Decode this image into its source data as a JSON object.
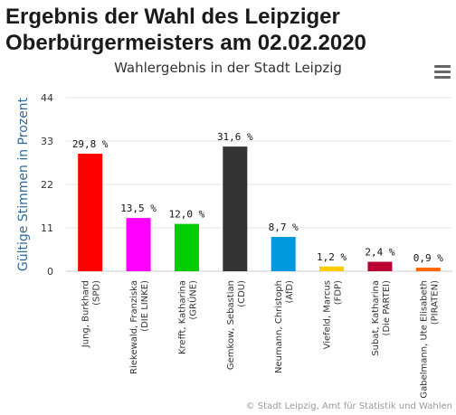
{
  "page": {
    "heading_line1": "Ergebnis der Wahl des Leipziger",
    "heading_line2": "Oberbürgermeisters am 02.02.2020",
    "credits": "© Stadt Leipzig, Amt für Statistik und Wahlen",
    "menu_icon": "hamburger-menu-icon"
  },
  "chart_data": {
    "type": "bar",
    "title": "Wahlergebnis in der Stadt Leipzig",
    "ylabel": "Gültige Stimmen in Prozent",
    "ylim": [
      0,
      44
    ],
    "yticks": [
      "0",
      "11",
      "22",
      "33",
      "44"
    ],
    "ytick_values": [
      0,
      11,
      22,
      33,
      44
    ],
    "categories": [
      [
        "Jung, Burkhard",
        "(SPD)"
      ],
      [
        "Riekewald, Franziska",
        "(DIE LINKE)"
      ],
      [
        "Krefft, Katharina",
        "(GRÜNE)"
      ],
      [
        "Gemkow, Sebastian",
        "(CDU)"
      ],
      [
        "Neumann, Christoph",
        "(AfD)"
      ],
      [
        "Viefeld, Marcus",
        "(FDP)"
      ],
      [
        "Subat, Katharina",
        "(Die PARTEI)"
      ],
      [
        "Gabelmann, Ute Elisabeth",
        "(PIRATEN)"
      ]
    ],
    "values": [
      29.8,
      13.5,
      12.0,
      31.6,
      8.7,
      1.2,
      2.4,
      0.9
    ],
    "value_labels": [
      "29,8 %",
      "13,5 %",
      "12,0 %",
      "31,6 %",
      "8,7 %",
      "1,2 %",
      "2,4 %",
      "0,9 %"
    ],
    "colors": [
      "#ff0000",
      "#ff00ff",
      "#00cc00",
      "#333333",
      "#0099dd",
      "#ffcc00",
      "#bb0033",
      "#ff6600"
    ],
    "grid": true,
    "legend": "none"
  }
}
